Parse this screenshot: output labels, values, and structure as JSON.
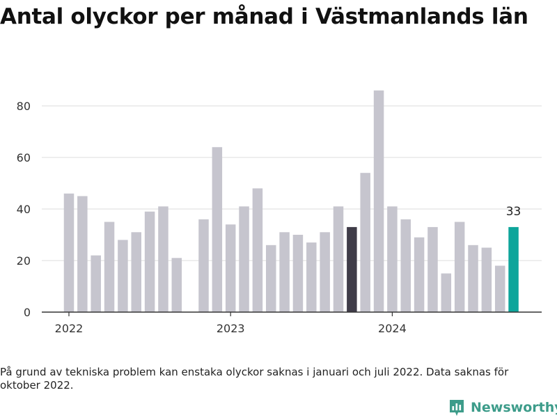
{
  "title": "Antal olyckor per månad i Västmanlands län",
  "note": "På grund av tekniska problem kan enstaka olyckor saknas i januari och juli 2022. Data saknas för oktober 2022.",
  "brand": {
    "name": "Newsworthy",
    "icon": "bar-chart-speech-icon"
  },
  "colors": {
    "default": "#c6c5ce",
    "highlight_dark": "#3f3c48",
    "highlight_latest": "#0ea59b",
    "grid": "#dddddd",
    "axis": "#333333"
  },
  "chart_data": {
    "type": "bar",
    "title": "Antal olyckor per månad i Västmanlands län",
    "xlabel": "",
    "ylabel": "",
    "ylim": [
      0,
      90
    ],
    "yticks": [
      0,
      20,
      40,
      60,
      80
    ],
    "xtick_labels": [
      {
        "label": "2022",
        "index": 0
      },
      {
        "label": "2023",
        "index": 12
      },
      {
        "label": "2024",
        "index": 24
      }
    ],
    "grid": true,
    "months": [
      "2022-01",
      "2022-02",
      "2022-03",
      "2022-04",
      "2022-05",
      "2022-06",
      "2022-07",
      "2022-08",
      "2022-09",
      "2022-10",
      "2022-11",
      "2022-12",
      "2023-01",
      "2023-02",
      "2023-03",
      "2023-04",
      "2023-05",
      "2023-06",
      "2023-07",
      "2023-08",
      "2023-09",
      "2023-10",
      "2023-11",
      "2023-12",
      "2024-01",
      "2024-02",
      "2024-03",
      "2024-04",
      "2024-05",
      "2024-06",
      "2024-07",
      "2024-08",
      "2024-09",
      "2024-10",
      "2024-11",
      "2024-12"
    ],
    "values": [
      46,
      45,
      22,
      35,
      28,
      31,
      39,
      41,
      21,
      null,
      36,
      64,
      34,
      41,
      48,
      26,
      31,
      30,
      27,
      31,
      41,
      33,
      54,
      86,
      41,
      36,
      29,
      33,
      15,
      35,
      26,
      25,
      18,
      33,
      null,
      null
    ],
    "highlights": [
      {
        "index": 21,
        "role": "highlight_dark"
      },
      {
        "index": 33,
        "role": "highlight_latest",
        "label": "33"
      }
    ]
  }
}
